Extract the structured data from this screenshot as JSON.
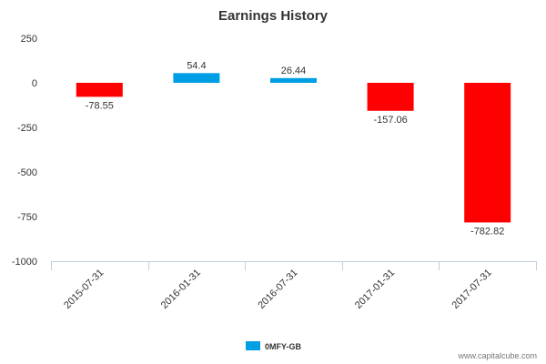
{
  "chart_data": {
    "type": "bar",
    "title": "Earnings History",
    "xlabel": "",
    "ylabel": "",
    "categories": [
      "2015-07-31",
      "2016-01-31",
      "2016-07-31",
      "2017-01-31",
      "2017-07-31"
    ],
    "series": [
      {
        "name": "0MFY-GB",
        "values": [
          -78.55,
          54.4,
          26.44,
          -157.06,
          -782.82
        ],
        "data_labels": [
          "-78.55",
          "54.4",
          "26.44",
          "-157.06",
          "-782.82"
        ]
      }
    ],
    "ylim": [
      -1000,
      250
    ],
    "yticks": [
      250,
      0,
      -250,
      -500,
      -750,
      -1000
    ],
    "ytick_labels": [
      "250",
      "0",
      "-250",
      "-500",
      "-750",
      "-1000"
    ],
    "colors": {
      "positive": "#009ee5",
      "negative": "#ff0000"
    },
    "grid": false,
    "legend_position": "bottom-center"
  },
  "credit": "www.capitalcube.com"
}
